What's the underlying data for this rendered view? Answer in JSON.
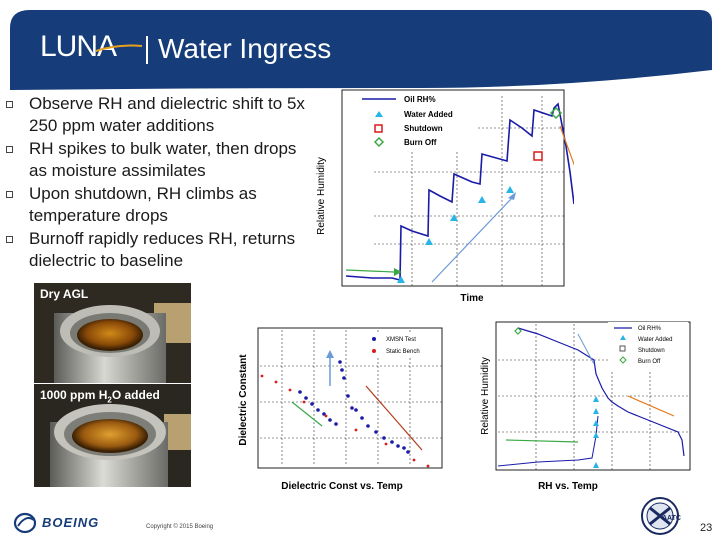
{
  "header": {
    "logo": "LUNA",
    "title": "Water Ingress"
  },
  "bullets": [
    "Observe RH and dielectric shift to 5x 250 ppm water additions",
    "RH spikes to bulk water, then drops as moisture assimilates",
    "Upon shutdown, RH climbs as temperature drops",
    "Burnoff rapidly reduces RH, returns dielectric to baseline"
  ],
  "photos": {
    "top_label": "Dry AGL",
    "bottom_label_prefix": "1000 ppm H",
    "bottom_label_sub": "2",
    "bottom_label_suffix": "O added"
  },
  "footer": {
    "company": "BOEING",
    "copyright": "Copyright © 2015 Boeing",
    "badge": "AATC",
    "page_number": "23"
  },
  "colors": {
    "header_blue": "#163d7a",
    "series_blue": "#1a1aa8",
    "marker_cyan": "#27b4e6",
    "marker_red": "#d91c1c",
    "marker_green": "#3aa845"
  },
  "chart_data": [
    {
      "type": "line",
      "xlabel": "Time",
      "ylabel": "Relative Humidity",
      "legend": [
        "Oil RH%",
        "Water Added",
        "Shutdown",
        "Burn Off"
      ],
      "legend_position": "top-left",
      "grid": true,
      "series": [
        {
          "name": "Oil RH%",
          "values": [
            0.06,
            0.06,
            0.07,
            0.14,
            0.13,
            0.25,
            0.24,
            0.34,
            0.31,
            0.46,
            0.41,
            0.58,
            0.52,
            0.7,
            0.63,
            0.78,
            0.68,
            0.4,
            0.32
          ]
        }
      ]
    },
    {
      "type": "scatter",
      "xlabel": "Dielectric Const vs. Temp",
      "ylabel": "Dielectric Constant",
      "legend": [
        "XMSN Test",
        "Static Bench"
      ],
      "legend_position": "top-right",
      "grid": true,
      "series": [
        {
          "name": "XMSN Test",
          "values": []
        },
        {
          "name": "Static Bench",
          "values": []
        }
      ]
    },
    {
      "type": "line",
      "xlabel": "RH  vs. Temp",
      "ylabel": "Relative Humidity",
      "legend": [
        "Oil RH%",
        "Water Added",
        "Shutdown",
        "Burn Off"
      ],
      "legend_position": "top-right",
      "grid": true,
      "series": [
        {
          "name": "Oil RH%",
          "values": []
        }
      ]
    }
  ]
}
